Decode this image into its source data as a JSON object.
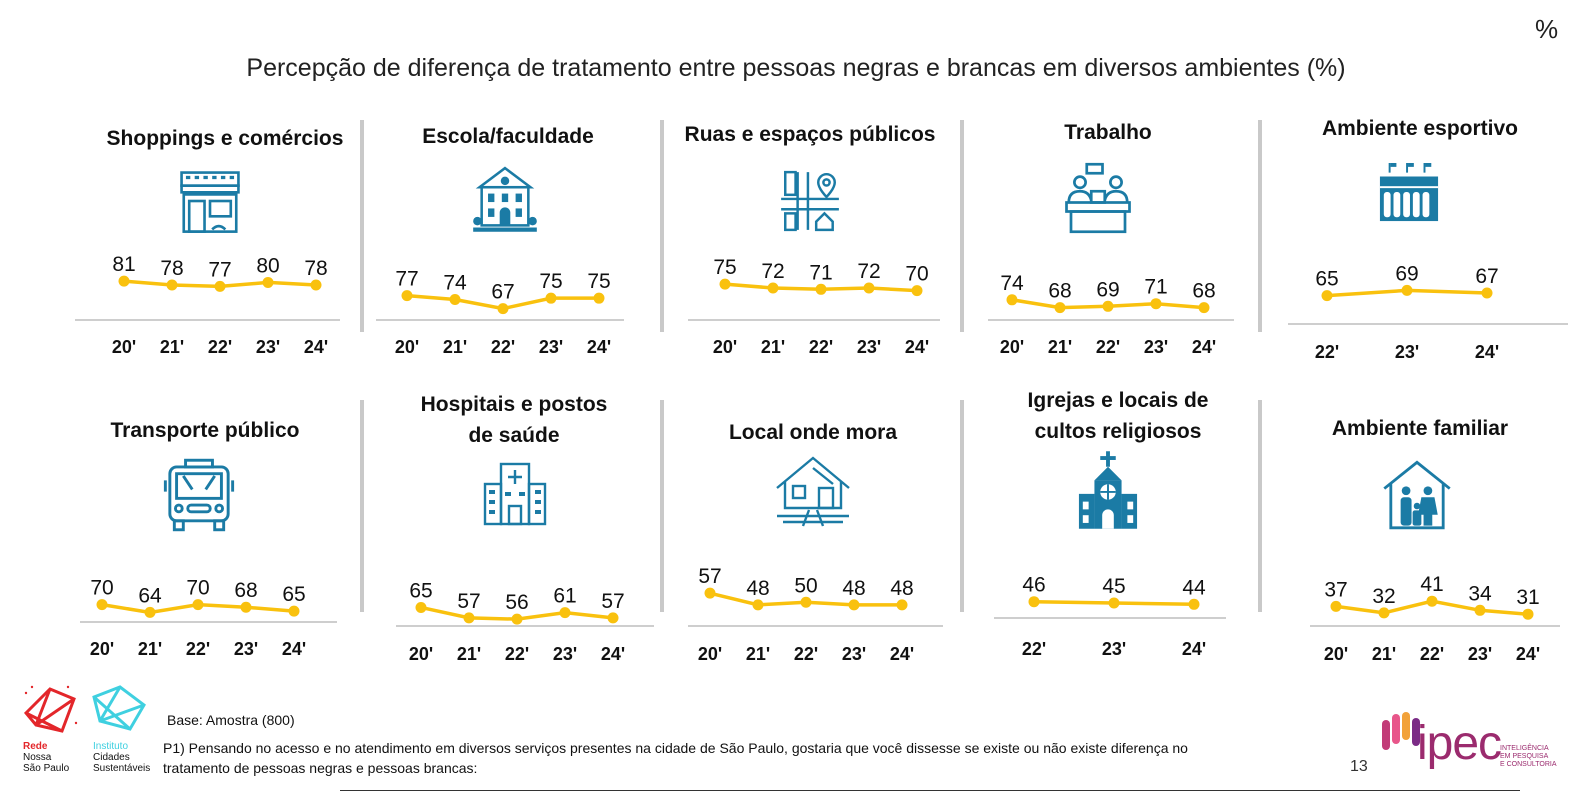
{
  "percent_symbol": "%",
  "title": "Percepção de diferença de tratamento entre pessoas negras e brancas em diversos ambientes (%)",
  "colors": {
    "line": "#f9c10e",
    "axis": "#bdbdbd",
    "icon": "#1b7ba5",
    "separator": "#c9c9c9"
  },
  "chart_data": [
    {
      "type": "line",
      "title": "Shoppings e comércios",
      "icon": "store-icon",
      "categories": [
        "20'",
        "21'",
        "22'",
        "23'",
        "24'"
      ],
      "values": [
        81,
        78,
        77,
        80,
        78
      ],
      "ylim": [
        0,
        100
      ]
    },
    {
      "type": "line",
      "title": "Escola/faculdade",
      "icon": "school-icon",
      "categories": [
        "20'",
        "21'",
        "22'",
        "23'",
        "24'"
      ],
      "values": [
        77,
        74,
        67,
        75,
        75
      ],
      "ylim": [
        0,
        100
      ]
    },
    {
      "type": "line",
      "title": "Ruas e espaços públicos",
      "icon": "street-map-icon",
      "categories": [
        "20'",
        "21'",
        "22'",
        "23'",
        "24'"
      ],
      "values": [
        75,
        72,
        71,
        72,
        70
      ],
      "ylim": [
        0,
        100
      ]
    },
    {
      "type": "line",
      "title": "Trabalho",
      "icon": "office-desk-icon",
      "categories": [
        "20'",
        "21'",
        "22'",
        "23'",
        "24'"
      ],
      "values": [
        74,
        68,
        69,
        71,
        68
      ],
      "ylim": [
        0,
        100
      ]
    },
    {
      "type": "line",
      "title": "Ambiente esportivo",
      "icon": "stadium-icon",
      "categories": [
        "22'",
        "23'",
        "24'"
      ],
      "values": [
        65,
        69,
        67
      ],
      "ylim": [
        0,
        100
      ]
    },
    {
      "type": "line",
      "title": "Transporte público",
      "icon": "bus-icon",
      "categories": [
        "20'",
        "21'",
        "22'",
        "23'",
        "24'"
      ],
      "values": [
        70,
        64,
        70,
        68,
        65
      ],
      "ylim": [
        0,
        100
      ]
    },
    {
      "type": "line",
      "title_lines": [
        "Hospitais e postos",
        "de saúde"
      ],
      "icon": "hospital-icon",
      "categories": [
        "20'",
        "21'",
        "22'",
        "23'",
        "24'"
      ],
      "values": [
        65,
        57,
        56,
        61,
        57
      ],
      "ylim": [
        0,
        100
      ]
    },
    {
      "type": "line",
      "title": "Local onde mora",
      "icon": "house-icon",
      "categories": [
        "20'",
        "21'",
        "22'",
        "23'",
        "24'"
      ],
      "values": [
        57,
        48,
        50,
        48,
        48
      ],
      "ylim": [
        0,
        100
      ]
    },
    {
      "type": "line",
      "title_lines": [
        "Igrejas e locais de",
        "cultos religiosos"
      ],
      "icon": "church-icon",
      "categories": [
        "22'",
        "23'",
        "24'"
      ],
      "values": [
        46,
        45,
        44
      ],
      "ylim": [
        0,
        100
      ]
    },
    {
      "type": "line",
      "title": "Ambiente familiar",
      "icon": "family-home-icon",
      "categories": [
        "20'",
        "21'",
        "22'",
        "23'",
        "24'"
      ],
      "values": [
        37,
        32,
        41,
        34,
        31
      ],
      "ylim": [
        0,
        100
      ]
    }
  ],
  "footer": {
    "base": "Base: Amostra (800)",
    "question": "P1) Pensando no acesso e no atendimento em diversos serviços presentes na cidade de São Paulo, gostaria que você dissesse se existe ou não existe diferença no tratamento de pessoas negras e pessoas brancas:",
    "page_number": "13",
    "logo_rede": [
      "Rede",
      "Nossa",
      "São Paulo"
    ],
    "logo_instituto": [
      "Instituto",
      "Cidades",
      "Sustentáveis"
    ],
    "logo_ipec": "ipec",
    "ipec_tagline": [
      "INTELIGÊNCIA",
      "EM PESQUISA",
      "E CONSULTORIA"
    ]
  }
}
